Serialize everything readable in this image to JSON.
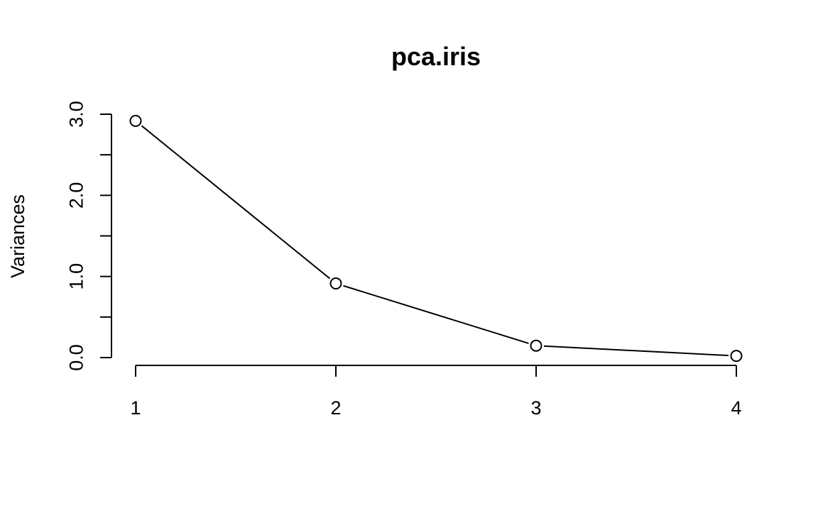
{
  "chart_data": {
    "type": "line",
    "title": "pca.iris",
    "xlabel": "",
    "ylabel": "Variances",
    "categories": [
      "1",
      "2",
      "3",
      "4"
    ],
    "values": [
      2.918,
      0.914,
      0.147,
      0.021
    ],
    "ylim": [
      0,
      3.0
    ],
    "yticks": [
      0,
      0.5,
      1.0,
      1.5,
      2.0,
      2.5,
      3.0
    ],
    "ytick_labels": [
      "0.0",
      "1.0",
      "2.0",
      "3.0"
    ],
    "ytick_labeled_values": [
      0,
      1.0,
      2.0,
      3.0
    ],
    "grid": false,
    "markers": "open-circle"
  }
}
